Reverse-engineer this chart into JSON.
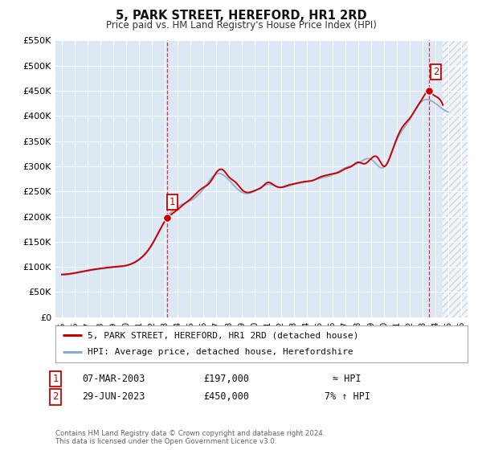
{
  "title": "5, PARK STREET, HEREFORD, HR1 2RD",
  "subtitle": "Price paid vs. HM Land Registry's House Price Index (HPI)",
  "background_color": "#ffffff",
  "plot_bg_color": "#dce9f5",
  "grid_color": "#ffffff",
  "line_color": "#cc0000",
  "hpi_line_color": "#88aacc",
  "vline_color": "#cc0000",
  "ylim": [
    0,
    550000
  ],
  "yticks": [
    0,
    50000,
    100000,
    150000,
    200000,
    250000,
    300000,
    350000,
    400000,
    450000,
    500000,
    550000
  ],
  "ytick_labels": [
    "£0",
    "£50K",
    "£100K",
    "£150K",
    "£200K",
    "£250K",
    "£300K",
    "£350K",
    "£400K",
    "£450K",
    "£500K",
    "£550K"
  ],
  "xlim_start": 1994.5,
  "xlim_end": 2026.5,
  "xticks": [
    1995,
    1996,
    1997,
    1998,
    1999,
    2000,
    2001,
    2002,
    2003,
    2004,
    2005,
    2006,
    2007,
    2008,
    2009,
    2010,
    2011,
    2012,
    2013,
    2014,
    2015,
    2016,
    2017,
    2018,
    2019,
    2020,
    2021,
    2022,
    2023,
    2024,
    2025,
    2026
  ],
  "sale1_x": 2003.18,
  "sale1_y": 197000,
  "sale1_label": "1",
  "sale1_date": "07-MAR-2003",
  "sale1_price": "£197,000",
  "sale1_hpi": "≈ HPI",
  "sale2_x": 2023.49,
  "sale2_y": 450000,
  "sale2_label": "2",
  "sale2_date": "29-JUN-2023",
  "sale2_price": "£450,000",
  "sale2_hpi": "7% ↑ HPI",
  "legend_line1": "5, PARK STREET, HEREFORD, HR1 2RD (detached house)",
  "legend_line2": "HPI: Average price, detached house, Herefordshire",
  "footer1": "Contains HM Land Registry data © Crown copyright and database right 2024.",
  "footer2": "This data is licensed under the Open Government Licence v3.0.",
  "hatch_region_start": 2024.58,
  "hatch_region_end": 2026.5
}
